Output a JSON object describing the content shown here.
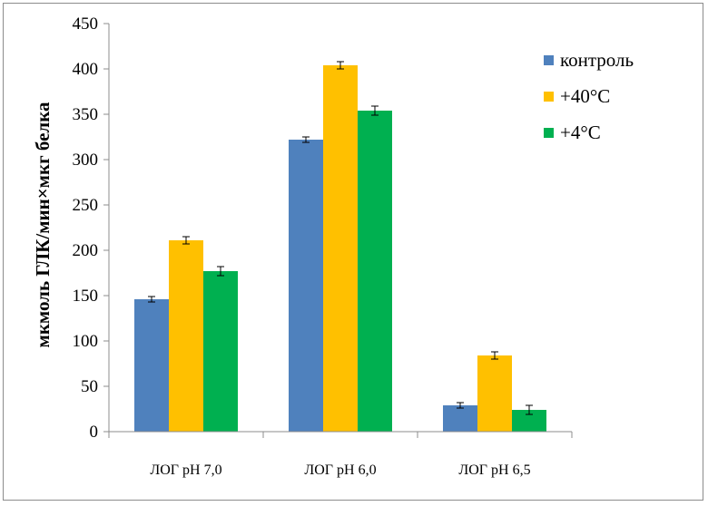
{
  "chart_data": {
    "type": "bar",
    "title": "",
    "xlabel": "",
    "ylabel": "мкмоль ГЛК/мин×мкг белка",
    "ylim": [
      0,
      450
    ],
    "yticks": [
      0,
      50,
      100,
      150,
      200,
      250,
      300,
      350,
      400,
      450
    ],
    "grid": false,
    "legend_position": "right",
    "categories": [
      "ЛОГ pH 7,0",
      "ЛОГ pH 6,0",
      "ЛОГ pH 6,5"
    ],
    "series": [
      {
        "name": "контроль",
        "color": "#4f81bd",
        "values": [
          146,
          322,
          29
        ],
        "errors": [
          3,
          3,
          3
        ]
      },
      {
        "name": "+40°C",
        "color": "#ffc000",
        "values": [
          211,
          404,
          84
        ],
        "errors": [
          4,
          4,
          4
        ]
      },
      {
        "name": "+4°C",
        "color": "#00b050",
        "values": [
          177,
          354,
          24
        ],
        "errors": [
          5,
          5,
          5
        ]
      }
    ]
  }
}
